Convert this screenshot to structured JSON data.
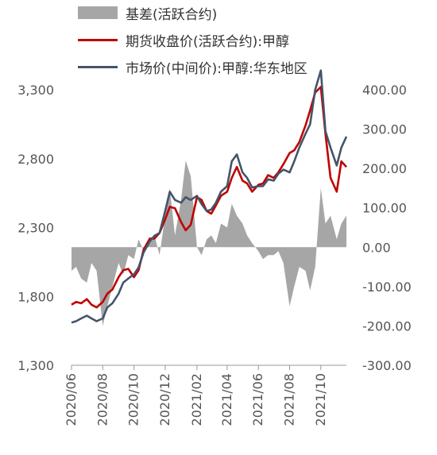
{
  "chart_data": {
    "type": "area+line",
    "legend_placement": "top",
    "grid": false,
    "x_range": [
      "2020-06-01",
      "2021-11-20"
    ],
    "x_ticks": [
      "2020/06-01",
      "2020/08-01",
      "2020/10-01",
      "2020/12-01",
      "2021/02-01",
      "2021/04-01",
      "2021/06-01",
      "2021/08-01",
      "2021/10-01"
    ],
    "x_tick_labels": [
      "2020/06",
      "2020/08",
      "2020/10",
      "2020/12",
      "2021/02",
      "2021/04",
      "2021/06",
      "2021/08",
      "2021/10"
    ],
    "y_left": {
      "ylim": [
        1300,
        3300
      ],
      "ticks": [
        "1,300",
        "1,800",
        "2,300",
        "2,800",
        "3,300"
      ]
    },
    "y_right": {
      "ylim": [
        -300,
        400
      ],
      "ticks": [
        "-300.00",
        "-200.00",
        "-100.00",
        "0.00",
        "100.00",
        "200.00",
        "300.00",
        "400.00"
      ]
    },
    "series": [
      {
        "name": "基差(活跃合约)",
        "type": "area",
        "axis": "right",
        "color": "#a6a6a6",
        "points": [
          [
            "2020-06-01",
            -60
          ],
          [
            "2020-06-10",
            -50
          ],
          [
            "2020-06-20",
            -80
          ],
          [
            "2020-07-01",
            -90
          ],
          [
            "2020-07-10",
            -40
          ],
          [
            "2020-07-20",
            -60
          ],
          [
            "2020-08-01",
            -200
          ],
          [
            "2020-08-10",
            -150
          ],
          [
            "2020-08-20",
            -100
          ],
          [
            "2020-09-01",
            -40
          ],
          [
            "2020-09-10",
            -70
          ],
          [
            "2020-09-20",
            -20
          ],
          [
            "2020-10-01",
            -30
          ],
          [
            "2020-10-10",
            20
          ],
          [
            "2020-10-20",
            -10
          ],
          [
            "2020-11-01",
            20
          ],
          [
            "2020-11-10",
            30
          ],
          [
            "2020-11-20",
            -20
          ],
          [
            "2020-12-01",
            80
          ],
          [
            "2020-12-10",
            150
          ],
          [
            "2020-12-20",
            30
          ],
          [
            "2021-01-01",
            120
          ],
          [
            "2021-01-10",
            220
          ],
          [
            "2021-01-20",
            180
          ],
          [
            "2021-02-01",
            0
          ],
          [
            "2021-02-10",
            -20
          ],
          [
            "2021-02-20",
            20
          ],
          [
            "2021-03-01",
            30
          ],
          [
            "2021-03-10",
            10
          ],
          [
            "2021-03-20",
            60
          ],
          [
            "2021-04-01",
            50
          ],
          [
            "2021-04-10",
            110
          ],
          [
            "2021-04-20",
            80
          ],
          [
            "2021-05-01",
            60
          ],
          [
            "2021-05-10",
            30
          ],
          [
            "2021-05-20",
            10
          ],
          [
            "2021-06-01",
            -10
          ],
          [
            "2021-06-10",
            -30
          ],
          [
            "2021-06-20",
            -20
          ],
          [
            "2021-07-01",
            -20
          ],
          [
            "2021-07-10",
            -10
          ],
          [
            "2021-07-20",
            -40
          ],
          [
            "2021-08-01",
            -150
          ],
          [
            "2021-08-10",
            -100
          ],
          [
            "2021-08-20",
            -50
          ],
          [
            "2021-09-01",
            -60
          ],
          [
            "2021-09-10",
            -110
          ],
          [
            "2021-09-20",
            -50
          ],
          [
            "2021-10-01",
            150
          ],
          [
            "2021-10-10",
            60
          ],
          [
            "2021-10-20",
            80
          ],
          [
            "2021-11-01",
            20
          ],
          [
            "2021-11-10",
            60
          ],
          [
            "2021-11-20",
            80
          ]
        ]
      },
      {
        "name": "期货收盘价(活跃合约):甲醇",
        "type": "line",
        "axis": "left",
        "color": "#c00000",
        "points": [
          [
            "2020-06-01",
            1740
          ],
          [
            "2020-06-10",
            1760
          ],
          [
            "2020-06-20",
            1750
          ],
          [
            "2020-07-01",
            1780
          ],
          [
            "2020-07-10",
            1740
          ],
          [
            "2020-07-20",
            1720
          ],
          [
            "2020-08-01",
            1760
          ],
          [
            "2020-08-10",
            1820
          ],
          [
            "2020-08-20",
            1850
          ],
          [
            "2020-09-01",
            1940
          ],
          [
            "2020-09-10",
            1990
          ],
          [
            "2020-09-20",
            2000
          ],
          [
            "2020-10-01",
            1940
          ],
          [
            "2020-10-10",
            1990
          ],
          [
            "2020-10-20",
            2140
          ],
          [
            "2020-11-01",
            2220
          ],
          [
            "2020-11-10",
            2220
          ],
          [
            "2020-11-20",
            2260
          ],
          [
            "2020-12-01",
            2360
          ],
          [
            "2020-12-10",
            2450
          ],
          [
            "2020-12-20",
            2440
          ],
          [
            "2021-01-01",
            2340
          ],
          [
            "2021-01-10",
            2280
          ],
          [
            "2021-01-20",
            2320
          ],
          [
            "2021-02-01",
            2520
          ],
          [
            "2021-02-10",
            2500
          ],
          [
            "2021-02-20",
            2420
          ],
          [
            "2021-03-01",
            2400
          ],
          [
            "2021-03-10",
            2460
          ],
          [
            "2021-03-20",
            2530
          ],
          [
            "2021-04-01",
            2560
          ],
          [
            "2021-04-10",
            2660
          ],
          [
            "2021-04-20",
            2740
          ],
          [
            "2021-05-01",
            2640
          ],
          [
            "2021-05-10",
            2620
          ],
          [
            "2021-05-20",
            2560
          ],
          [
            "2021-06-01",
            2610
          ],
          [
            "2021-06-10",
            2620
          ],
          [
            "2021-06-20",
            2680
          ],
          [
            "2021-07-01",
            2660
          ],
          [
            "2021-07-10",
            2700
          ],
          [
            "2021-07-20",
            2760
          ],
          [
            "2021-08-01",
            2840
          ],
          [
            "2021-08-10",
            2860
          ],
          [
            "2021-08-20",
            2920
          ],
          [
            "2021-09-01",
            3040
          ],
          [
            "2021-09-10",
            3150
          ],
          [
            "2021-09-20",
            3280
          ],
          [
            "2021-10-01",
            3320
          ],
          [
            "2021-10-10",
            2980
          ],
          [
            "2021-10-20",
            2660
          ],
          [
            "2021-11-01",
            2560
          ],
          [
            "2021-11-10",
            2780
          ],
          [
            "2021-11-20",
            2740
          ]
        ]
      },
      {
        "name": "市场价(中间价):甲醇:华东地区",
        "type": "line",
        "axis": "left",
        "color": "#44546a",
        "points": [
          [
            "2020-06-01",
            1610
          ],
          [
            "2020-06-10",
            1620
          ],
          [
            "2020-06-20",
            1640
          ],
          [
            "2020-07-01",
            1660
          ],
          [
            "2020-07-10",
            1640
          ],
          [
            "2020-07-20",
            1620
          ],
          [
            "2020-08-01",
            1640
          ],
          [
            "2020-08-10",
            1720
          ],
          [
            "2020-08-20",
            1750
          ],
          [
            "2020-09-01",
            1820
          ],
          [
            "2020-09-10",
            1900
          ],
          [
            "2020-09-20",
            1930
          ],
          [
            "2020-10-01",
            1960
          ],
          [
            "2020-10-10",
            2010
          ],
          [
            "2020-10-20",
            2120
          ],
          [
            "2020-11-01",
            2200
          ],
          [
            "2020-11-10",
            2240
          ],
          [
            "2020-11-20",
            2260
          ],
          [
            "2020-12-01",
            2420
          ],
          [
            "2020-12-10",
            2560
          ],
          [
            "2020-12-20",
            2500
          ],
          [
            "2021-01-01",
            2480
          ],
          [
            "2021-01-10",
            2520
          ],
          [
            "2021-01-20",
            2500
          ],
          [
            "2021-02-01",
            2530
          ],
          [
            "2021-02-10",
            2470
          ],
          [
            "2021-02-20",
            2420
          ],
          [
            "2021-03-01",
            2430
          ],
          [
            "2021-03-10",
            2480
          ],
          [
            "2021-03-20",
            2560
          ],
          [
            "2021-04-01",
            2600
          ],
          [
            "2021-04-10",
            2780
          ],
          [
            "2021-04-20",
            2830
          ],
          [
            "2021-05-01",
            2700
          ],
          [
            "2021-05-10",
            2660
          ],
          [
            "2021-05-20",
            2590
          ],
          [
            "2021-06-01",
            2600
          ],
          [
            "2021-06-10",
            2600
          ],
          [
            "2021-06-20",
            2650
          ],
          [
            "2021-07-01",
            2640
          ],
          [
            "2021-07-10",
            2690
          ],
          [
            "2021-07-20",
            2720
          ],
          [
            "2021-08-01",
            2700
          ],
          [
            "2021-08-10",
            2780
          ],
          [
            "2021-08-20",
            2880
          ],
          [
            "2021-09-01",
            2980
          ],
          [
            "2021-09-10",
            3050
          ],
          [
            "2021-09-20",
            3300
          ],
          [
            "2021-10-01",
            3440
          ],
          [
            "2021-10-10",
            3000
          ],
          [
            "2021-10-20",
            2880
          ],
          [
            "2021-11-01",
            2750
          ],
          [
            "2021-11-10",
            2880
          ],
          [
            "2021-11-20",
            2960
          ]
        ]
      }
    ]
  }
}
